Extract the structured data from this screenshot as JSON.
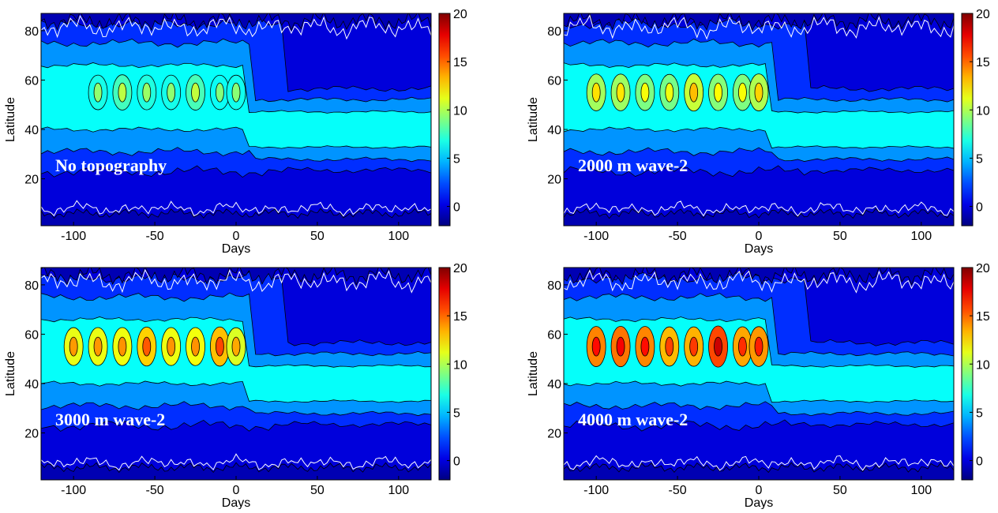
{
  "chart_data": [
    {
      "type": "contour",
      "annotation": "No topography",
      "xlabel": "Days",
      "ylabel": "Latitude",
      "xlim": [
        -120,
        120
      ],
      "xticks": [
        -100,
        -50,
        0,
        50,
        100
      ],
      "ylim": [
        1,
        87
      ],
      "yticks": [
        20,
        40,
        60,
        80
      ],
      "colormap": "jet",
      "clim": [
        -2,
        20
      ],
      "cticks": [
        0,
        5,
        10,
        15,
        20
      ]
    },
    {
      "type": "contour",
      "annotation": "2000 m wave-2",
      "xlabel": "Days",
      "ylabel": "Latitude",
      "xlim": [
        -120,
        120
      ],
      "xticks": [
        -100,
        -50,
        0,
        50,
        100
      ],
      "ylim": [
        1,
        87
      ],
      "yticks": [
        20,
        40,
        60,
        80
      ],
      "colormap": "jet",
      "clim": [
        -2,
        20
      ],
      "cticks": [
        0,
        5,
        10,
        15,
        20
      ]
    },
    {
      "type": "contour",
      "annotation": "3000 m wave-2",
      "xlabel": "Days",
      "ylabel": "Latitude",
      "xlim": [
        -120,
        120
      ],
      "xticks": [
        -100,
        -50,
        0,
        50,
        100
      ],
      "ylim": [
        1,
        87
      ],
      "yticks": [
        20,
        40,
        60,
        80
      ],
      "colormap": "jet",
      "clim": [
        -2,
        20
      ],
      "cticks": [
        0,
        5,
        10,
        15,
        20
      ]
    },
    {
      "type": "contour",
      "annotation": "4000 m wave-2",
      "xlabel": "Days",
      "ylabel": "Latitude",
      "xlim": [
        -120,
        120
      ],
      "xticks": [
        -100,
        -50,
        0,
        50,
        100
      ],
      "ylim": [
        1,
        87
      ],
      "yticks": [
        20,
        40,
        60,
        80
      ],
      "colormap": "jet",
      "clim": [
        -2,
        20
      ],
      "cticks": [
        0,
        5,
        10,
        15,
        20
      ]
    }
  ]
}
